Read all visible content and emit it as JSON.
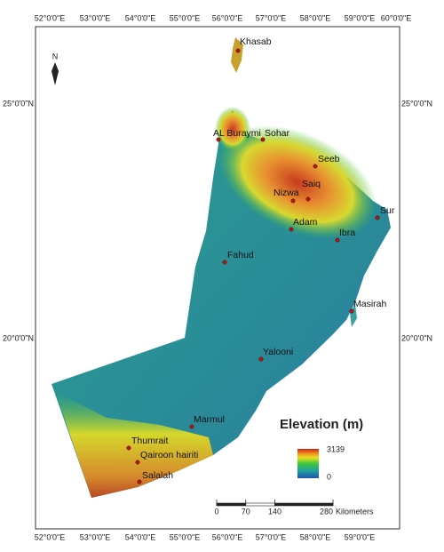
{
  "map": {
    "top_labels": [
      "52°0'0\"E",
      "53°0'0\"E",
      "54°0'0\"E",
      "55°0'0\"E",
      "56°0'0\"E",
      "57°0'0\"E",
      "58°0'0\"E",
      "59°0'0\"E",
      "60°0'0\"E"
    ],
    "bottom_labels": [
      "52°0'0\"E",
      "53°0'0\"E",
      "54°0'0\"E",
      "55°0'0\"E",
      "56°0'0\"E",
      "57°0'0\"E",
      "58°0'0\"E",
      "59°0'0\"E"
    ],
    "left_labels": [
      "25°0'0\"N",
      "20°0'0\"N"
    ],
    "right_labels": [
      "25°0'0\"N",
      "20°0'0\"N"
    ],
    "north": "N",
    "cities": [
      "Khasab",
      "AL Buraymi",
      "Sohar",
      "Seeb",
      "Saiq",
      "Nizwa",
      "Sur",
      "Adam",
      "Ibra",
      "Fahud",
      "Masirah",
      "Yalooni",
      "Marmul",
      "Thumrait",
      "Qairoon hairiti",
      "Salalah"
    ],
    "legend": {
      "title": "Elevation (m)",
      "max": 3139,
      "min": 0
    },
    "scale": {
      "ticks": [
        0,
        70,
        140,
        280
      ],
      "unit": "Kilometers"
    }
  }
}
